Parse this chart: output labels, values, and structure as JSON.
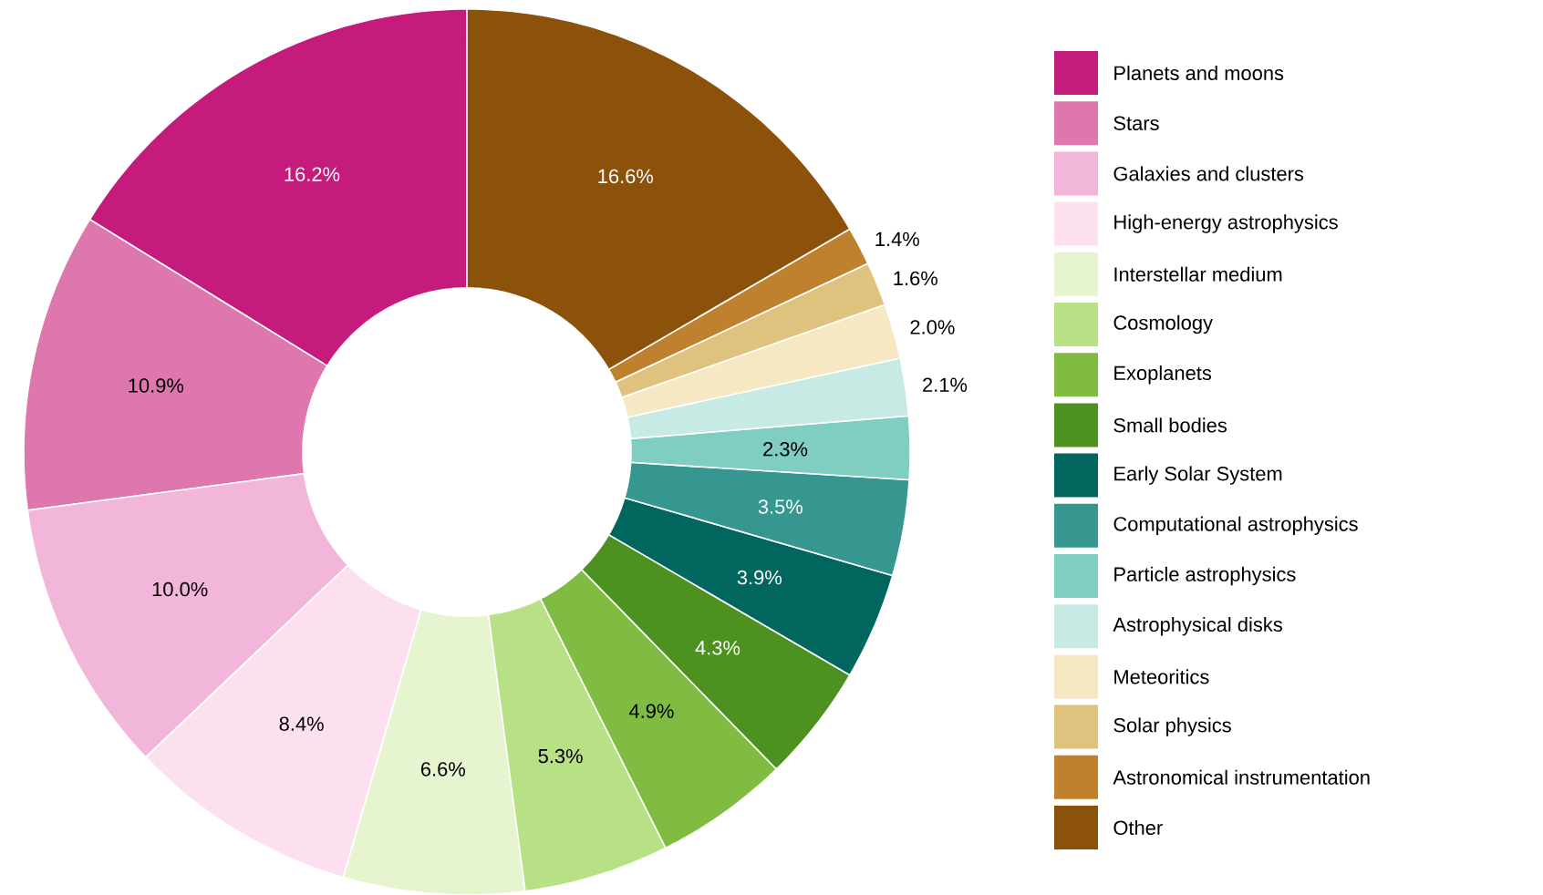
{
  "chart_data": {
    "type": "donut",
    "categories": [
      "Planets and moons",
      "Stars",
      "Galaxies and clusters",
      "High-energy astrophysics",
      "Interstellar medium",
      "Cosmology",
      "Exoplanets",
      "Small bodies",
      "Early Solar System",
      "Computational astrophysics",
      "Particle astrophysics",
      "Astrophysical disks",
      "Meteoritics",
      "Solar physics",
      "Astronomical instrumentation",
      "Other"
    ],
    "values": [
      16.2,
      10.9,
      10.0,
      8.4,
      6.6,
      5.3,
      4.9,
      4.3,
      3.9,
      3.5,
      2.3,
      2.1,
      2.0,
      1.6,
      1.4,
      16.6
    ],
    "value_labels": [
      "16.2%",
      "10.9%",
      "10.0%",
      "8.4%",
      "6.6%",
      "5.3%",
      "4.9%",
      "4.3%",
      "3.9%",
      "3.5%",
      "2.3%",
      "2.1%",
      "2.0%",
      "1.6%",
      "1.4%",
      "16.6%"
    ],
    "colors": [
      "#c51b7d",
      "#de77ae",
      "#f1b6da",
      "#fde0ef",
      "#e6f5d0",
      "#b8e186",
      "#7fbc41",
      "#4d9221",
      "#01665e",
      "#35978f",
      "#80cdc1",
      "#c7eae5",
      "#f6e8c3",
      "#dfc27d",
      "#bf812d",
      "#8c510a"
    ],
    "legend": "right"
  }
}
